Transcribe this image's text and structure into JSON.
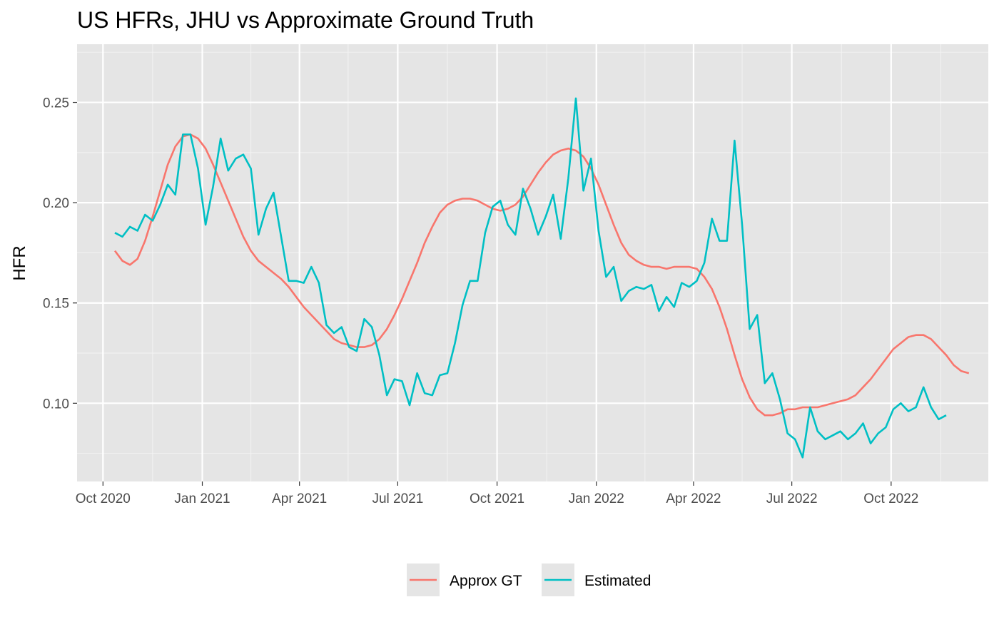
{
  "chart_data": {
    "type": "line",
    "title": "US HFRs, JHU vs Approximate Ground Truth",
    "xlabel": "",
    "ylabel": "HFR",
    "x_ticks": [
      "Oct 2020",
      "Jan 2021",
      "Apr 2021",
      "Jul 2021",
      "Oct 2021",
      "Jan 2022",
      "Apr 2022",
      "Jul 2022",
      "Oct 2022"
    ],
    "y_ticks": [
      "0.10",
      "0.15",
      "0.20",
      "0.25"
    ],
    "xlim": [
      "2020-09-07",
      "2022-12-30"
    ],
    "ylim": [
      0.061,
      0.279
    ],
    "grid": true,
    "legend_position": "bottom",
    "series": [
      {
        "name": "Approx GT",
        "color": "#F8766D",
        "points": [
          [
            "2020-10-12",
            0.176
          ],
          [
            "2020-10-19",
            0.171
          ],
          [
            "2020-10-26",
            0.169
          ],
          [
            "2020-11-02",
            0.172
          ],
          [
            "2020-11-09",
            0.181
          ],
          [
            "2020-11-16",
            0.193
          ],
          [
            "2020-11-23",
            0.206
          ],
          [
            "2020-11-30",
            0.219
          ],
          [
            "2020-12-07",
            0.228
          ],
          [
            "2020-12-14",
            0.233
          ],
          [
            "2020-12-21",
            0.234
          ],
          [
            "2020-12-28",
            0.232
          ],
          [
            "2021-01-04",
            0.227
          ],
          [
            "2021-01-11",
            0.219
          ],
          [
            "2021-01-18",
            0.21
          ],
          [
            "2021-01-25",
            0.201
          ],
          [
            "2021-02-01",
            0.192
          ],
          [
            "2021-02-08",
            0.183
          ],
          [
            "2021-02-15",
            0.176
          ],
          [
            "2021-02-22",
            0.171
          ],
          [
            "2021-03-01",
            0.168
          ],
          [
            "2021-03-08",
            0.165
          ],
          [
            "2021-03-15",
            0.162
          ],
          [
            "2021-03-22",
            0.158
          ],
          [
            "2021-03-29",
            0.153
          ],
          [
            "2021-04-05",
            0.148
          ],
          [
            "2021-04-12",
            0.144
          ],
          [
            "2021-04-19",
            0.14
          ],
          [
            "2021-04-26",
            0.136
          ],
          [
            "2021-05-03",
            0.132
          ],
          [
            "2021-05-10",
            0.13
          ],
          [
            "2021-05-17",
            0.129
          ],
          [
            "2021-05-24",
            0.128
          ],
          [
            "2021-05-31",
            0.128
          ],
          [
            "2021-06-07",
            0.129
          ],
          [
            "2021-06-14",
            0.132
          ],
          [
            "2021-06-21",
            0.137
          ],
          [
            "2021-06-28",
            0.144
          ],
          [
            "2021-07-05",
            0.152
          ],
          [
            "2021-07-12",
            0.161
          ],
          [
            "2021-07-19",
            0.17
          ],
          [
            "2021-07-26",
            0.18
          ],
          [
            "2021-08-02",
            0.188
          ],
          [
            "2021-08-09",
            0.195
          ],
          [
            "2021-08-16",
            0.199
          ],
          [
            "2021-08-23",
            0.201
          ],
          [
            "2021-08-30",
            0.202
          ],
          [
            "2021-09-06",
            0.202
          ],
          [
            "2021-09-13",
            0.201
          ],
          [
            "2021-09-20",
            0.199
          ],
          [
            "2021-09-27",
            0.197
          ],
          [
            "2021-10-04",
            0.196
          ],
          [
            "2021-10-11",
            0.197
          ],
          [
            "2021-10-18",
            0.199
          ],
          [
            "2021-10-25",
            0.203
          ],
          [
            "2021-11-01",
            0.209
          ],
          [
            "2021-11-08",
            0.215
          ],
          [
            "2021-11-15",
            0.22
          ],
          [
            "2021-11-22",
            0.224
          ],
          [
            "2021-11-29",
            0.226
          ],
          [
            "2021-12-06",
            0.227
          ],
          [
            "2021-12-13",
            0.226
          ],
          [
            "2021-12-20",
            0.223
          ],
          [
            "2021-12-27",
            0.217
          ],
          [
            "2022-01-03",
            0.209
          ],
          [
            "2022-01-10",
            0.199
          ],
          [
            "2022-01-17",
            0.189
          ],
          [
            "2022-01-24",
            0.18
          ],
          [
            "2022-01-31",
            0.174
          ],
          [
            "2022-02-07",
            0.171
          ],
          [
            "2022-02-14",
            0.169
          ],
          [
            "2022-02-21",
            0.168
          ],
          [
            "2022-02-28",
            0.168
          ],
          [
            "2022-03-07",
            0.167
          ],
          [
            "2022-03-14",
            0.168
          ],
          [
            "2022-03-21",
            0.168
          ],
          [
            "2022-03-28",
            0.168
          ],
          [
            "2022-04-04",
            0.167
          ],
          [
            "2022-04-11",
            0.163
          ],
          [
            "2022-04-18",
            0.157
          ],
          [
            "2022-04-25",
            0.148
          ],
          [
            "2022-05-02",
            0.137
          ],
          [
            "2022-05-09",
            0.124
          ],
          [
            "2022-05-16",
            0.112
          ],
          [
            "2022-05-23",
            0.103
          ],
          [
            "2022-05-30",
            0.097
          ],
          [
            "2022-06-06",
            0.094
          ],
          [
            "2022-06-13",
            0.094
          ],
          [
            "2022-06-20",
            0.095
          ],
          [
            "2022-06-27",
            0.097
          ],
          [
            "2022-07-04",
            0.097
          ],
          [
            "2022-07-11",
            0.098
          ],
          [
            "2022-07-18",
            0.098
          ],
          [
            "2022-07-25",
            0.098
          ],
          [
            "2022-08-01",
            0.099
          ],
          [
            "2022-08-08",
            0.1
          ],
          [
            "2022-08-15",
            0.101
          ],
          [
            "2022-08-22",
            0.102
          ],
          [
            "2022-08-29",
            0.104
          ],
          [
            "2022-09-05",
            0.108
          ],
          [
            "2022-09-12",
            0.112
          ],
          [
            "2022-09-19",
            0.117
          ],
          [
            "2022-09-26",
            0.122
          ],
          [
            "2022-10-03",
            0.127
          ],
          [
            "2022-10-10",
            0.13
          ],
          [
            "2022-10-17",
            0.133
          ],
          [
            "2022-10-24",
            0.134
          ],
          [
            "2022-10-31",
            0.134
          ],
          [
            "2022-11-07",
            0.132
          ],
          [
            "2022-11-14",
            0.128
          ],
          [
            "2022-11-21",
            0.124
          ],
          [
            "2022-11-28",
            0.119
          ],
          [
            "2022-12-05",
            0.116
          ],
          [
            "2022-12-12",
            0.115
          ]
        ]
      },
      {
        "name": "Estimated",
        "color": "#00BFC4",
        "points": [
          [
            "2020-10-12",
            0.185
          ],
          [
            "2020-10-19",
            0.183
          ],
          [
            "2020-10-26",
            0.188
          ],
          [
            "2020-11-02",
            0.186
          ],
          [
            "2020-11-09",
            0.194
          ],
          [
            "2020-11-16",
            0.191
          ],
          [
            "2020-11-23",
            0.199
          ],
          [
            "2020-11-30",
            0.209
          ],
          [
            "2020-12-07",
            0.204
          ],
          [
            "2020-12-14",
            0.234
          ],
          [
            "2020-12-21",
            0.234
          ],
          [
            "2020-12-28",
            0.217
          ],
          [
            "2021-01-04",
            0.189
          ],
          [
            "2021-01-11",
            0.208
          ],
          [
            "2021-01-18",
            0.232
          ],
          [
            "2021-01-25",
            0.216
          ],
          [
            "2021-02-01",
            0.222
          ],
          [
            "2021-02-08",
            0.224
          ],
          [
            "2021-02-15",
            0.217
          ],
          [
            "2021-02-22",
            0.184
          ],
          [
            "2021-03-01",
            0.197
          ],
          [
            "2021-03-08",
            0.205
          ],
          [
            "2021-03-15",
            0.183
          ],
          [
            "2021-03-22",
            0.161
          ],
          [
            "2021-03-29",
            0.161
          ],
          [
            "2021-04-05",
            0.16
          ],
          [
            "2021-04-12",
            0.168
          ],
          [
            "2021-04-19",
            0.16
          ],
          [
            "2021-04-26",
            0.139
          ],
          [
            "2021-05-03",
            0.135
          ],
          [
            "2021-05-10",
            0.138
          ],
          [
            "2021-05-17",
            0.128
          ],
          [
            "2021-05-24",
            0.126
          ],
          [
            "2021-05-31",
            0.142
          ],
          [
            "2021-06-07",
            0.138
          ],
          [
            "2021-06-14",
            0.124
          ],
          [
            "2021-06-21",
            0.104
          ],
          [
            "2021-06-28",
            0.112
          ],
          [
            "2021-07-05",
            0.111
          ],
          [
            "2021-07-12",
            0.099
          ],
          [
            "2021-07-19",
            0.115
          ],
          [
            "2021-07-26",
            0.105
          ],
          [
            "2021-08-02",
            0.104
          ],
          [
            "2021-08-09",
            0.114
          ],
          [
            "2021-08-16",
            0.115
          ],
          [
            "2021-08-23",
            0.13
          ],
          [
            "2021-08-30",
            0.149
          ],
          [
            "2021-09-06",
            0.161
          ],
          [
            "2021-09-13",
            0.161
          ],
          [
            "2021-09-20",
            0.185
          ],
          [
            "2021-09-27",
            0.198
          ],
          [
            "2021-10-04",
            0.201
          ],
          [
            "2021-10-11",
            0.189
          ],
          [
            "2021-10-18",
            0.184
          ],
          [
            "2021-10-25",
            0.207
          ],
          [
            "2021-11-01",
            0.197
          ],
          [
            "2021-11-08",
            0.184
          ],
          [
            "2021-11-15",
            0.193
          ],
          [
            "2021-11-22",
            0.204
          ],
          [
            "2021-11-29",
            0.182
          ],
          [
            "2021-12-06",
            0.212
          ],
          [
            "2021-12-13",
            0.252
          ],
          [
            "2021-12-20",
            0.206
          ],
          [
            "2021-12-27",
            0.222
          ],
          [
            "2022-01-03",
            0.186
          ],
          [
            "2022-01-10",
            0.163
          ],
          [
            "2022-01-17",
            0.168
          ],
          [
            "2022-01-24",
            0.151
          ],
          [
            "2022-01-31",
            0.156
          ],
          [
            "2022-02-07",
            0.158
          ],
          [
            "2022-02-14",
            0.157
          ],
          [
            "2022-02-21",
            0.159
          ],
          [
            "2022-02-28",
            0.146
          ],
          [
            "2022-03-07",
            0.153
          ],
          [
            "2022-03-14",
            0.148
          ],
          [
            "2022-03-21",
            0.16
          ],
          [
            "2022-03-28",
            0.158
          ],
          [
            "2022-04-04",
            0.161
          ],
          [
            "2022-04-11",
            0.17
          ],
          [
            "2022-04-18",
            0.192
          ],
          [
            "2022-04-25",
            0.181
          ],
          [
            "2022-05-02",
            0.181
          ],
          [
            "2022-05-09",
            0.231
          ],
          [
            "2022-05-16",
            0.189
          ],
          [
            "2022-05-23",
            0.137
          ],
          [
            "2022-05-30",
            0.144
          ],
          [
            "2022-06-06",
            0.11
          ],
          [
            "2022-06-13",
            0.115
          ],
          [
            "2022-06-20",
            0.102
          ],
          [
            "2022-06-27",
            0.085
          ],
          [
            "2022-07-04",
            0.082
          ],
          [
            "2022-07-11",
            0.073
          ],
          [
            "2022-07-18",
            0.098
          ],
          [
            "2022-07-25",
            0.086
          ],
          [
            "2022-08-01",
            0.082
          ],
          [
            "2022-08-08",
            0.084
          ],
          [
            "2022-08-15",
            0.086
          ],
          [
            "2022-08-22",
            0.082
          ],
          [
            "2022-08-29",
            0.085
          ],
          [
            "2022-09-05",
            0.09
          ],
          [
            "2022-09-12",
            0.08
          ],
          [
            "2022-09-19",
            0.085
          ],
          [
            "2022-09-26",
            0.088
          ],
          [
            "2022-10-03",
            0.097
          ],
          [
            "2022-10-10",
            0.1
          ],
          [
            "2022-10-17",
            0.096
          ],
          [
            "2022-10-24",
            0.098
          ],
          [
            "2022-10-31",
            0.108
          ],
          [
            "2022-11-07",
            0.098
          ],
          [
            "2022-11-14",
            0.092
          ],
          [
            "2022-11-21",
            0.094
          ]
        ]
      }
    ]
  },
  "colors": {
    "panel_background": "#E5E5E5",
    "grid_major": "#FFFFFF",
    "approx_gt": "#F8766D",
    "estimated": "#00BFC4"
  }
}
